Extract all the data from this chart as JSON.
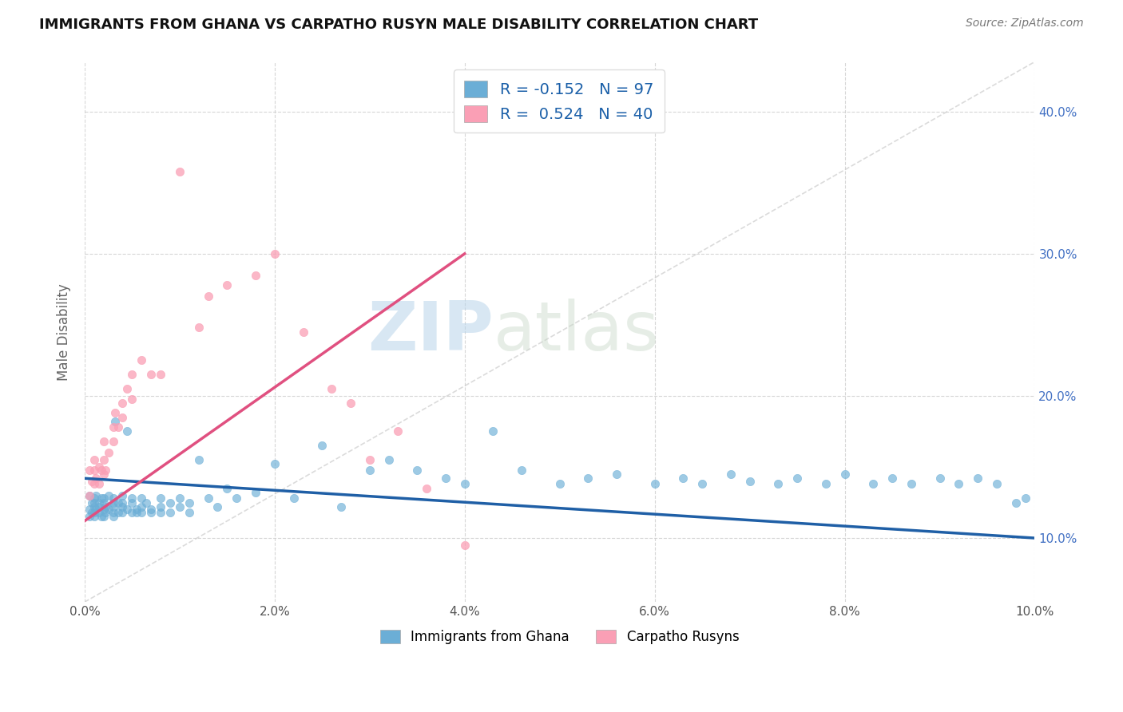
{
  "title": "IMMIGRANTS FROM GHANA VS CARPATHO RUSYN MALE DISABILITY CORRELATION CHART",
  "source": "Source: ZipAtlas.com",
  "ylabel": "Male Disability",
  "xlim": [
    0.0,
    0.1
  ],
  "ylim": [
    0.055,
    0.435
  ],
  "xticks": [
    0.0,
    0.02,
    0.04,
    0.06,
    0.08,
    0.1
  ],
  "yticks": [
    0.1,
    0.2,
    0.3,
    0.4
  ],
  "xtick_labels": [
    "0.0%",
    "2.0%",
    "4.0%",
    "6.0%",
    "8.0%",
    "10.0%"
  ],
  "ytick_labels": [
    "10.0%",
    "20.0%",
    "30.0%",
    "40.0%"
  ],
  "ghana_color": "#6baed6",
  "carpatho_color": "#fa9fb5",
  "ghana_R": -0.152,
  "ghana_N": 97,
  "carpatho_R": 0.524,
  "carpatho_N": 40,
  "ghana_label": "Immigrants from Ghana",
  "carpatho_label": "Carpatho Rusyns",
  "watermark_zip": "ZIP",
  "watermark_atlas": "atlas",
  "background_color": "#ffffff",
  "grid_color": "#cccccc",
  "trend_ghana_color": "#1f5fa6",
  "trend_carpatho_color": "#e05080",
  "diag_color": "#cccccc",
  "ghana_x": [
    0.0005,
    0.0005,
    0.0005,
    0.0008,
    0.0008,
    0.001,
    0.001,
    0.001,
    0.001,
    0.001,
    0.0012,
    0.0012,
    0.0015,
    0.0015,
    0.0015,
    0.0018,
    0.0018,
    0.002,
    0.002,
    0.002,
    0.002,
    0.0022,
    0.0022,
    0.0025,
    0.0025,
    0.003,
    0.003,
    0.003,
    0.003,
    0.003,
    0.0032,
    0.0035,
    0.0035,
    0.004,
    0.004,
    0.004,
    0.004,
    0.0045,
    0.0045,
    0.005,
    0.005,
    0.005,
    0.0055,
    0.0055,
    0.006,
    0.006,
    0.006,
    0.0065,
    0.007,
    0.007,
    0.008,
    0.008,
    0.008,
    0.009,
    0.009,
    0.01,
    0.01,
    0.011,
    0.011,
    0.012,
    0.013,
    0.014,
    0.015,
    0.016,
    0.018,
    0.02,
    0.022,
    0.025,
    0.027,
    0.03,
    0.032,
    0.035,
    0.038,
    0.04,
    0.043,
    0.046,
    0.05,
    0.053,
    0.056,
    0.06,
    0.063,
    0.065,
    0.068,
    0.07,
    0.073,
    0.075,
    0.078,
    0.08,
    0.083,
    0.085,
    0.087,
    0.09,
    0.092,
    0.094,
    0.096,
    0.098,
    0.099
  ],
  "ghana_y": [
    0.13,
    0.12,
    0.115,
    0.125,
    0.118,
    0.128,
    0.122,
    0.115,
    0.118,
    0.125,
    0.12,
    0.13,
    0.122,
    0.118,
    0.125,
    0.128,
    0.115,
    0.125,
    0.12,
    0.115,
    0.128,
    0.118,
    0.122,
    0.13,
    0.12,
    0.128,
    0.118,
    0.122,
    0.115,
    0.125,
    0.182,
    0.118,
    0.125,
    0.13,
    0.122,
    0.118,
    0.125,
    0.175,
    0.12,
    0.128,
    0.118,
    0.125,
    0.12,
    0.118,
    0.128,
    0.122,
    0.118,
    0.125,
    0.12,
    0.118,
    0.128,
    0.122,
    0.118,
    0.125,
    0.118,
    0.128,
    0.122,
    0.125,
    0.118,
    0.155,
    0.128,
    0.122,
    0.135,
    0.128,
    0.132,
    0.152,
    0.128,
    0.165,
    0.122,
    0.148,
    0.155,
    0.148,
    0.142,
    0.138,
    0.175,
    0.148,
    0.138,
    0.142,
    0.145,
    0.138,
    0.142,
    0.138,
    0.145,
    0.14,
    0.138,
    0.142,
    0.138,
    0.145,
    0.138,
    0.142,
    0.138,
    0.142,
    0.138,
    0.142,
    0.138,
    0.125,
    0.128
  ],
  "carpatho_x": [
    0.0005,
    0.0005,
    0.0008,
    0.001,
    0.001,
    0.001,
    0.0012,
    0.0015,
    0.0015,
    0.0018,
    0.002,
    0.002,
    0.002,
    0.0022,
    0.0025,
    0.003,
    0.003,
    0.0032,
    0.0035,
    0.004,
    0.004,
    0.0045,
    0.005,
    0.005,
    0.006,
    0.007,
    0.008,
    0.01,
    0.012,
    0.013,
    0.015,
    0.018,
    0.02,
    0.023,
    0.026,
    0.028,
    0.03,
    0.033,
    0.036,
    0.04
  ],
  "carpatho_y": [
    0.148,
    0.13,
    0.14,
    0.138,
    0.148,
    0.155,
    0.142,
    0.15,
    0.138,
    0.148,
    0.168,
    0.145,
    0.155,
    0.148,
    0.16,
    0.178,
    0.168,
    0.188,
    0.178,
    0.195,
    0.185,
    0.205,
    0.215,
    0.198,
    0.225,
    0.215,
    0.215,
    0.358,
    0.248,
    0.27,
    0.278,
    0.285,
    0.3,
    0.245,
    0.205,
    0.195,
    0.155,
    0.175,
    0.135,
    0.095
  ],
  "ghana_trend_x": [
    0.0,
    0.1
  ],
  "ghana_trend_y": [
    0.142,
    0.1
  ],
  "carpatho_trend_x": [
    0.0,
    0.04
  ],
  "carpatho_trend_y": [
    0.112,
    0.3
  ]
}
